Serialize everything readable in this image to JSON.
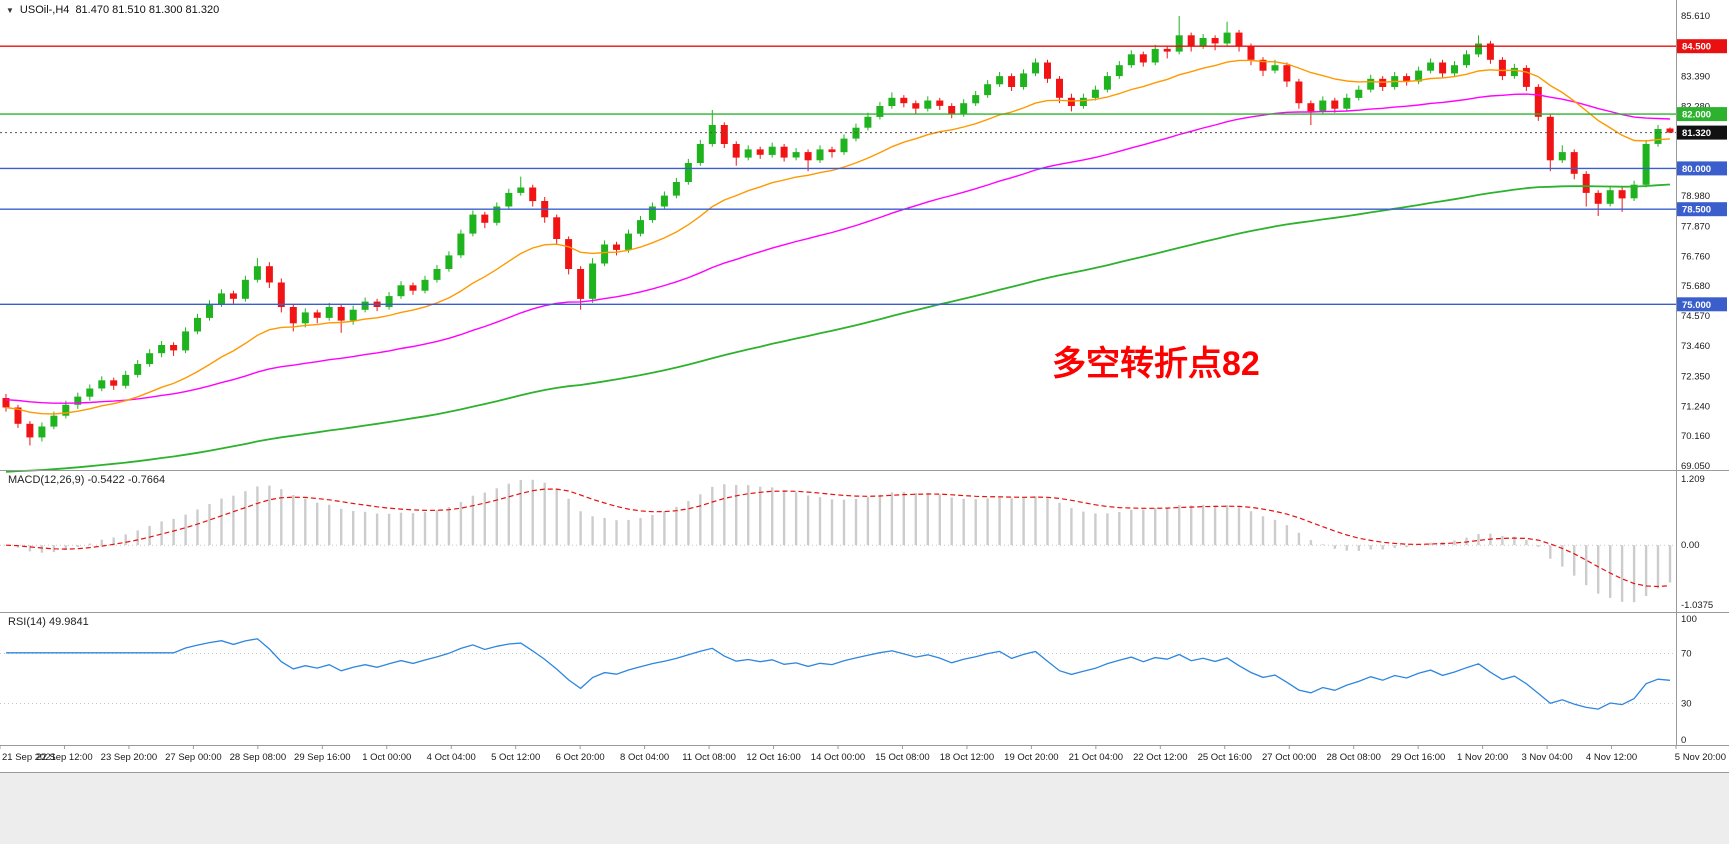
{
  "header": {
    "symbol_label": "USOil-,H4",
    "ohlc_label": "81.470 81.510 81.300 81.320"
  },
  "icons": {
    "symbol_dropdown": "▼"
  },
  "annotation": {
    "text": "多空转折点82",
    "color": "#FF0000"
  },
  "colors": {
    "background": "#FFFFFF",
    "footer": "#EDEDED",
    "separator": "#9A9A9A",
    "axis_text": "#1A1A1A"
  },
  "time_axis": [
    "21 Sep 2021",
    "22 Sep 12:00",
    "23 Sep 20:00",
    "27 Sep 00:00",
    "28 Sep 08:00",
    "29 Sep 16:00",
    "1 Oct 00:00",
    "4 Oct 04:00",
    "5 Oct 12:00",
    "6 Oct 20:00",
    "8 Oct 04:00",
    "11 Oct 08:00",
    "12 Oct 16:00",
    "14 Oct 00:00",
    "15 Oct 08:00",
    "18 Oct 12:00",
    "19 Oct 20:00",
    "21 Oct 04:00",
    "22 Oct 12:00",
    "25 Oct 16:00",
    "27 Oct 00:00",
    "28 Oct 08:00",
    "29 Oct 16:00",
    "1 Nov 20:00",
    "3 Nov 04:00",
    "4 Nov 12:00",
    "5 Nov 20:00"
  ],
  "chart_data": [
    {
      "type": "candlestick",
      "title": "USOil-,H4",
      "ylim": [
        68.9,
        86.2
      ],
      "yticks": [
        "85.610",
        "83.390",
        "82.280",
        "78.980",
        "77.870",
        "76.760",
        "75.680",
        "74.570",
        "73.460",
        "72.350",
        "71.240",
        "70.160",
        "69.050"
      ],
      "bull_color": "#1FB31F",
      "bear_color": "#F01414",
      "overlays": [
        {
          "name": "ma-slow",
          "type": "ema",
          "period": 140,
          "seed": 68.8,
          "color": "#2DB22D",
          "width": 1.8
        },
        {
          "name": "ma-mid",
          "type": "ema",
          "period": 55,
          "seed": 71.5,
          "color": "#FF00FF",
          "width": 1.4
        },
        {
          "name": "ma-fast",
          "type": "ema",
          "period": 18,
          "seed": null,
          "color": "#FF9900",
          "width": 1.4
        }
      ],
      "h_lines": [
        {
          "value": 84.5,
          "label": "84.500",
          "color": "#E81010"
        },
        {
          "value": 82.0,
          "label": "82.000",
          "color": "#2DB22D"
        },
        {
          "value": 80.0,
          "label": "80.000",
          "color": "#3A5FCD"
        },
        {
          "value": 78.5,
          "label": "78.500",
          "color": "#3A5FCD"
        },
        {
          "value": 75.0,
          "label": "75.000",
          "color": "#3A5FCD"
        }
      ],
      "current_price": {
        "value": 81.32,
        "label": "81.320",
        "badge_color": "#111111"
      },
      "candles": [
        [
          71.55,
          71.7,
          71.05,
          71.2
        ],
        [
          71.2,
          71.3,
          70.45,
          70.6
        ],
        [
          70.6,
          70.7,
          69.8,
          70.1
        ],
        [
          70.1,
          70.65,
          69.95,
          70.5
        ],
        [
          70.5,
          71.05,
          70.4,
          70.9
        ],
        [
          70.9,
          71.45,
          70.8,
          71.3
        ],
        [
          71.3,
          71.75,
          71.15,
          71.6
        ],
        [
          71.6,
          72.05,
          71.45,
          71.9
        ],
        [
          71.9,
          72.35,
          71.8,
          72.2
        ],
        [
          72.2,
          72.3,
          71.85,
          72.0
        ],
        [
          72.0,
          72.55,
          71.9,
          72.4
        ],
        [
          72.4,
          72.95,
          72.3,
          72.8
        ],
        [
          72.8,
          73.35,
          72.7,
          73.2
        ],
        [
          73.2,
          73.65,
          73.05,
          73.5
        ],
        [
          73.5,
          73.6,
          73.1,
          73.3
        ],
        [
          73.3,
          74.15,
          73.2,
          74.0
        ],
        [
          74.0,
          74.65,
          73.9,
          74.5
        ],
        [
          74.5,
          75.15,
          74.4,
          75.0
        ],
        [
          75.0,
          75.55,
          74.9,
          75.4
        ],
        [
          75.4,
          75.5,
          75.0,
          75.2
        ],
        [
          75.2,
          76.05,
          75.1,
          75.9
        ],
        [
          75.9,
          76.7,
          75.8,
          76.4
        ],
        [
          76.4,
          76.55,
          75.6,
          75.8
        ],
        [
          75.8,
          75.95,
          74.7,
          74.9
        ],
        [
          74.9,
          75.0,
          74.0,
          74.3
        ],
        [
          74.3,
          74.85,
          74.15,
          74.7
        ],
        [
          74.7,
          74.8,
          74.3,
          74.5
        ],
        [
          74.5,
          75.05,
          74.4,
          74.9
        ],
        [
          74.9,
          75.0,
          73.95,
          74.4
        ],
        [
          74.4,
          74.95,
          74.25,
          74.8
        ],
        [
          74.8,
          75.25,
          74.7,
          75.1
        ],
        [
          75.1,
          75.2,
          74.75,
          74.9
        ],
        [
          74.9,
          75.45,
          74.8,
          75.3
        ],
        [
          75.3,
          75.85,
          75.2,
          75.7
        ],
        [
          75.7,
          75.8,
          75.35,
          75.5
        ],
        [
          75.5,
          76.05,
          75.4,
          75.9
        ],
        [
          75.9,
          76.45,
          75.8,
          76.3
        ],
        [
          76.3,
          76.95,
          76.2,
          76.8
        ],
        [
          76.8,
          77.75,
          76.7,
          77.6
        ],
        [
          77.6,
          78.45,
          77.5,
          78.3
        ],
        [
          78.3,
          78.4,
          77.8,
          78.0
        ],
        [
          78.0,
          78.75,
          77.9,
          78.6
        ],
        [
          78.6,
          79.25,
          78.5,
          79.1
        ],
        [
          79.1,
          79.7,
          79.0,
          79.3
        ],
        [
          79.3,
          79.4,
          78.6,
          78.8
        ],
        [
          78.8,
          78.95,
          78.0,
          78.2
        ],
        [
          78.2,
          78.3,
          77.2,
          77.4
        ],
        [
          77.4,
          77.5,
          76.1,
          76.3
        ],
        [
          76.3,
          76.4,
          74.8,
          75.2
        ],
        [
          75.2,
          76.7,
          75.05,
          76.5
        ],
        [
          76.5,
          77.35,
          76.4,
          77.2
        ],
        [
          77.2,
          77.3,
          76.8,
          77.0
        ],
        [
          77.0,
          77.75,
          76.9,
          77.6
        ],
        [
          77.6,
          78.25,
          77.5,
          78.1
        ],
        [
          78.1,
          78.75,
          78.0,
          78.6
        ],
        [
          78.6,
          79.15,
          78.5,
          79.0
        ],
        [
          79.0,
          79.65,
          78.9,
          79.5
        ],
        [
          79.5,
          80.35,
          79.4,
          80.2
        ],
        [
          80.2,
          81.05,
          80.1,
          80.9
        ],
        [
          80.9,
          82.15,
          80.8,
          81.6
        ],
        [
          81.6,
          81.7,
          80.75,
          80.9
        ],
        [
          80.9,
          81.0,
          80.1,
          80.4
        ],
        [
          80.4,
          80.85,
          80.3,
          80.7
        ],
        [
          80.7,
          80.8,
          80.35,
          80.5
        ],
        [
          80.5,
          80.95,
          80.4,
          80.8
        ],
        [
          80.8,
          80.9,
          80.25,
          80.4
        ],
        [
          80.4,
          80.75,
          80.3,
          80.6
        ],
        [
          80.6,
          80.7,
          79.9,
          80.3
        ],
        [
          80.3,
          80.85,
          80.2,
          80.7
        ],
        [
          80.7,
          80.8,
          80.4,
          80.6
        ],
        [
          80.6,
          81.25,
          80.5,
          81.1
        ],
        [
          81.1,
          81.65,
          81.0,
          81.5
        ],
        [
          81.5,
          82.05,
          81.4,
          81.9
        ],
        [
          81.9,
          82.45,
          81.8,
          82.3
        ],
        [
          82.3,
          82.8,
          82.2,
          82.6
        ],
        [
          82.6,
          82.7,
          82.25,
          82.4
        ],
        [
          82.4,
          82.5,
          82.0,
          82.2
        ],
        [
          82.2,
          82.65,
          82.1,
          82.5
        ],
        [
          82.5,
          82.6,
          82.15,
          82.3
        ],
        [
          82.3,
          82.4,
          81.85,
          82.0
        ],
        [
          82.0,
          82.55,
          81.9,
          82.4
        ],
        [
          82.4,
          82.85,
          82.3,
          82.7
        ],
        [
          82.7,
          83.25,
          82.6,
          83.1
        ],
        [
          83.1,
          83.55,
          83.0,
          83.4
        ],
        [
          83.4,
          83.5,
          82.85,
          83.0
        ],
        [
          83.0,
          83.65,
          82.9,
          83.5
        ],
        [
          83.5,
          84.05,
          83.4,
          83.9
        ],
        [
          83.9,
          84.0,
          83.15,
          83.3
        ],
        [
          83.3,
          83.4,
          82.4,
          82.6
        ],
        [
          82.6,
          82.75,
          82.1,
          82.3
        ],
        [
          82.3,
          82.75,
          82.2,
          82.6
        ],
        [
          82.6,
          83.05,
          82.5,
          82.9
        ],
        [
          82.9,
          83.55,
          82.8,
          83.4
        ],
        [
          83.4,
          83.95,
          83.3,
          83.8
        ],
        [
          83.8,
          84.35,
          83.7,
          84.2
        ],
        [
          84.2,
          84.3,
          83.75,
          83.9
        ],
        [
          83.9,
          84.55,
          83.8,
          84.4
        ],
        [
          84.4,
          84.5,
          84.05,
          84.3
        ],
        [
          84.3,
          85.61,
          84.2,
          84.9
        ],
        [
          84.9,
          85.0,
          84.3,
          84.5
        ],
        [
          84.5,
          84.95,
          84.4,
          84.8
        ],
        [
          84.8,
          84.9,
          84.35,
          84.6
        ],
        [
          84.6,
          85.4,
          84.5,
          85.0
        ],
        [
          85.0,
          85.1,
          84.3,
          84.5
        ],
        [
          84.5,
          84.6,
          83.8,
          84.0
        ],
        [
          84.0,
          84.1,
          83.4,
          83.6
        ],
        [
          83.6,
          84.0,
          83.5,
          83.8
        ],
        [
          83.8,
          83.9,
          83.0,
          83.2
        ],
        [
          83.2,
          83.3,
          82.2,
          82.4
        ],
        [
          82.4,
          82.5,
          81.6,
          82.1
        ],
        [
          82.1,
          82.65,
          82.0,
          82.5
        ],
        [
          82.5,
          82.6,
          82.05,
          82.2
        ],
        [
          82.2,
          82.75,
          82.1,
          82.6
        ],
        [
          82.6,
          83.05,
          82.5,
          82.9
        ],
        [
          82.9,
          83.45,
          82.8,
          83.3
        ],
        [
          83.3,
          83.4,
          82.85,
          83.0
        ],
        [
          83.0,
          83.55,
          82.9,
          83.4
        ],
        [
          83.4,
          83.5,
          83.05,
          83.2
        ],
        [
          83.2,
          83.75,
          83.1,
          83.6
        ],
        [
          83.6,
          84.05,
          83.5,
          83.9
        ],
        [
          83.9,
          84.0,
          83.35,
          83.5
        ],
        [
          83.5,
          83.95,
          83.4,
          83.8
        ],
        [
          83.8,
          84.35,
          83.7,
          84.2
        ],
        [
          84.2,
          84.9,
          84.1,
          84.6
        ],
        [
          84.6,
          84.7,
          83.85,
          84.0
        ],
        [
          84.0,
          84.1,
          83.25,
          83.4
        ],
        [
          83.4,
          83.85,
          83.3,
          83.7
        ],
        [
          83.7,
          83.8,
          82.85,
          83.0
        ],
        [
          83.0,
          83.1,
          81.75,
          81.9
        ],
        [
          81.9,
          82.0,
          79.9,
          80.3
        ],
        [
          80.3,
          80.85,
          80.2,
          80.6
        ],
        [
          80.6,
          80.7,
          79.6,
          79.8
        ],
        [
          79.8,
          79.9,
          78.6,
          79.1
        ],
        [
          79.1,
          79.2,
          78.25,
          78.7
        ],
        [
          78.7,
          79.35,
          78.6,
          79.2
        ],
        [
          79.2,
          79.3,
          78.4,
          78.9
        ],
        [
          78.9,
          79.55,
          78.8,
          79.4
        ],
        [
          79.4,
          81.05,
          79.3,
          80.9
        ],
        [
          80.9,
          81.6,
          80.8,
          81.45
        ],
        [
          81.47,
          81.51,
          81.3,
          81.32
        ]
      ]
    },
    {
      "type": "bar",
      "label": "MACD(12,26,9) -0.5422 -0.7664",
      "params": {
        "fast": 12,
        "slow": 26,
        "signal": 9
      },
      "values": {
        "macd_last": -0.5422,
        "signal_last": -0.7664
      },
      "yticks": [
        "1.209",
        "0.00",
        "-1.0375"
      ],
      "histogram_color": "#CCCCCC",
      "signal_color": "#E81010"
    },
    {
      "type": "line",
      "label": "RSI(14) 49.9841",
      "params": {
        "period": 14
      },
      "values": {
        "rsi_last": 49.9841
      },
      "yticks": [
        "100",
        "70",
        "30",
        "0"
      ],
      "levels": [
        70,
        30
      ],
      "line_color": "#2E86E0"
    }
  ]
}
